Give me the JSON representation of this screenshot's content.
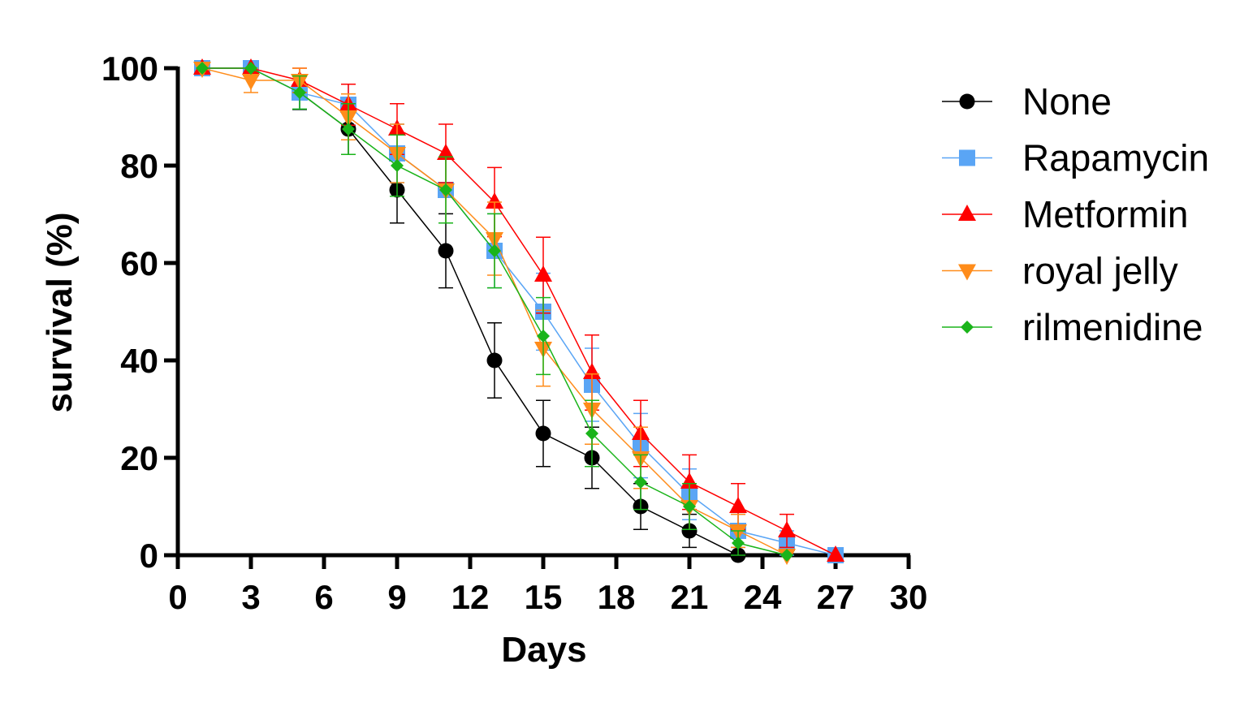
{
  "chart_data": {
    "type": "line",
    "xlabel": "Days",
    "ylabel": "survival (%)",
    "xlim": [
      0,
      30
    ],
    "ylim": [
      0,
      100
    ],
    "xticks": [
      "0",
      "3",
      "6",
      "9",
      "12",
      "15",
      "18",
      "21",
      "24",
      "27",
      "30"
    ],
    "yticks": [
      "0",
      "20",
      "40",
      "60",
      "80",
      "100"
    ],
    "legend_position": "right",
    "grid": false,
    "series": [
      {
        "name": "None",
        "color": "#000000",
        "marker": "circle",
        "x": [
          1,
          3,
          5,
          7,
          9,
          11,
          13,
          15,
          17,
          19,
          21,
          23
        ],
        "y": [
          100,
          100,
          95,
          87.5,
          75,
          62.5,
          40,
          25,
          20,
          10,
          5,
          0
        ],
        "err": [
          0,
          0,
          3.5,
          5.2,
          6.8,
          7.6,
          7.7,
          6.8,
          6.3,
          4.7,
          3.4,
          0
        ]
      },
      {
        "name": "Rapamycin",
        "color": "#5aa5f5",
        "marker": "square",
        "x": [
          1,
          3,
          5,
          7,
          9,
          11,
          13,
          15,
          17,
          19,
          21,
          23,
          25,
          27
        ],
        "y": [
          100,
          100,
          95,
          92.5,
          82.5,
          75,
          62.5,
          50,
          35,
          22.5,
          12.5,
          5,
          2.5,
          0
        ],
        "err": [
          0,
          0,
          3.4,
          4.2,
          6,
          6.8,
          7.6,
          7.9,
          7.5,
          6.6,
          5.2,
          3.4,
          2.5,
          0
        ]
      },
      {
        "name": "Metformin",
        "color": "#ff0000",
        "marker": "triangle-up",
        "x": [
          1,
          3,
          5,
          7,
          9,
          11,
          13,
          15,
          17,
          19,
          21,
          23,
          25,
          27
        ],
        "y": [
          100,
          100,
          97.5,
          92.5,
          87.5,
          82.5,
          72.5,
          57.5,
          37.5,
          25,
          15,
          10,
          5,
          0
        ],
        "err": [
          0,
          0,
          2.5,
          4.2,
          5.2,
          6,
          7.1,
          7.8,
          7.7,
          6.8,
          5.6,
          4.7,
          3.4,
          0
        ]
      },
      {
        "name": "royal jelly",
        "color": "#ff8c1a",
        "marker": "triangle-down",
        "x": [
          1,
          3,
          5,
          7,
          9,
          11,
          13,
          15,
          17,
          19,
          21,
          23,
          25
        ],
        "y": [
          100,
          97.5,
          97.5,
          90,
          82.5,
          75,
          65,
          42.5,
          30,
          20,
          10,
          5,
          0
        ],
        "err": [
          0,
          2.5,
          2.5,
          4.7,
          6,
          6.8,
          7.5,
          7.8,
          7.2,
          6.3,
          4.7,
          3.4,
          0
        ]
      },
      {
        "name": "rilmenidine",
        "color": "#1ab41a",
        "marker": "diamond",
        "x": [
          1,
          3,
          5,
          7,
          9,
          11,
          13,
          15,
          17,
          19,
          21,
          23,
          25
        ],
        "y": [
          100,
          100,
          95,
          87.5,
          80,
          75,
          62.5,
          45,
          25,
          15,
          10,
          2.5,
          0
        ],
        "err": [
          0,
          0,
          3.4,
          5.2,
          6.3,
          6.8,
          7.6,
          7.9,
          6.8,
          5.6,
          4.7,
          2.5,
          0
        ]
      }
    ]
  }
}
